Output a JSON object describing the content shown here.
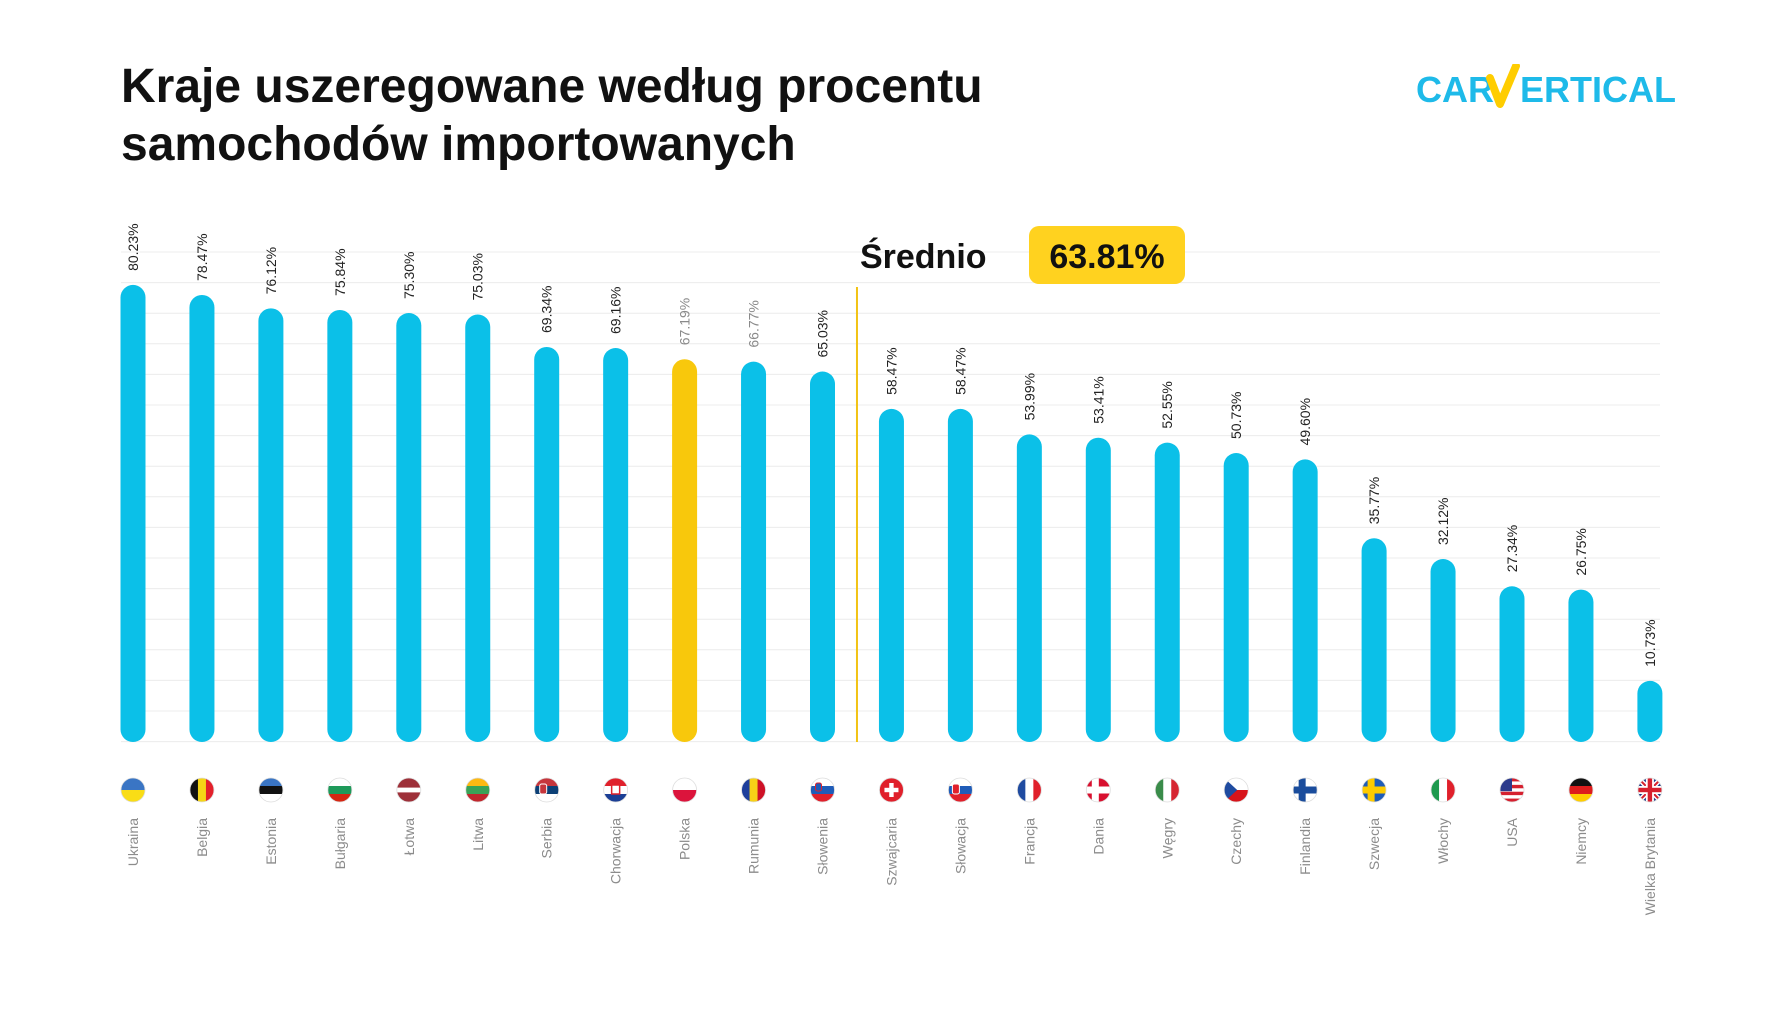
{
  "title_lines": [
    "Kraje uszeregowane według procentu",
    "samochodów importowanych"
  ],
  "brand": {
    "left": "CAR",
    "check": "V",
    "right": "ERTICAL",
    "color": "#1EBAE9",
    "check_color": "#FFCD00"
  },
  "average": {
    "label": "Średnio",
    "value_label": "63.81%",
    "value": 63.81
  },
  "colors": {
    "bar": "#0BC0E8",
    "highlight": "#F8C80C",
    "average_line": "#F2C314",
    "badge": "#FFD21F",
    "grid": "#ECECEC",
    "value_text": "#222222",
    "value_text_muted": "#8A8A8A",
    "category_text": "#8C8C8C"
  },
  "chart_data": {
    "type": "bar",
    "categories": [
      "Ukraina",
      "Belgia",
      "Estonia",
      "Bułgaria",
      "Łotwa",
      "Litwa",
      "Serbia",
      "Chorwacja",
      "Polska",
      "Rumunia",
      "Słowenia",
      "Szwajcaria",
      "Słowacja",
      "Francja",
      "Dania",
      "Węgry",
      "Czechy",
      "Finlandia",
      "Szwecja",
      "Włochy",
      "USA",
      "Niemcy",
      "Wielka Brytania"
    ],
    "values": [
      80.23,
      78.47,
      76.12,
      75.84,
      75.3,
      75.03,
      69.34,
      69.16,
      67.19,
      66.77,
      65.03,
      58.47,
      58.47,
      53.99,
      53.41,
      52.55,
      50.73,
      49.6,
      35.77,
      32.12,
      27.34,
      26.75,
      10.73
    ],
    "value_labels": [
      "80.23%",
      "78.47%",
      "76.12%",
      "75.84%",
      "75.30%",
      "75.03%",
      "69.34%",
      "69.16%",
      "67.19%",
      "66.77%",
      "65.03%",
      "58.47%",
      "58.47%",
      "53.99%",
      "53.41%",
      "52.55%",
      "50.73%",
      "49.60%",
      "35.77%",
      "32.12%",
      "27.34%",
      "26.75%",
      "10.73%"
    ],
    "muted_labels": [
      8,
      9
    ],
    "highlight": "Polska",
    "flags": [
      "ukraine-flag",
      "belgium-flag",
      "estonia-flag",
      "bulgaria-flag",
      "latvia-flag",
      "lithuania-flag",
      "serbia-flag",
      "croatia-flag",
      "poland-flag",
      "romania-flag",
      "slovenia-flag",
      "switzerland-flag",
      "slovakia-flag",
      "france-flag",
      "denmark-flag",
      "hungary-flag",
      "czechia-flag",
      "finland-flag",
      "sweden-flag",
      "italy-flag",
      "usa-flag",
      "germany-flag",
      "uk-flag"
    ],
    "ylim": [
      0,
      85
    ],
    "grid": true,
    "axes_visible": false
  }
}
